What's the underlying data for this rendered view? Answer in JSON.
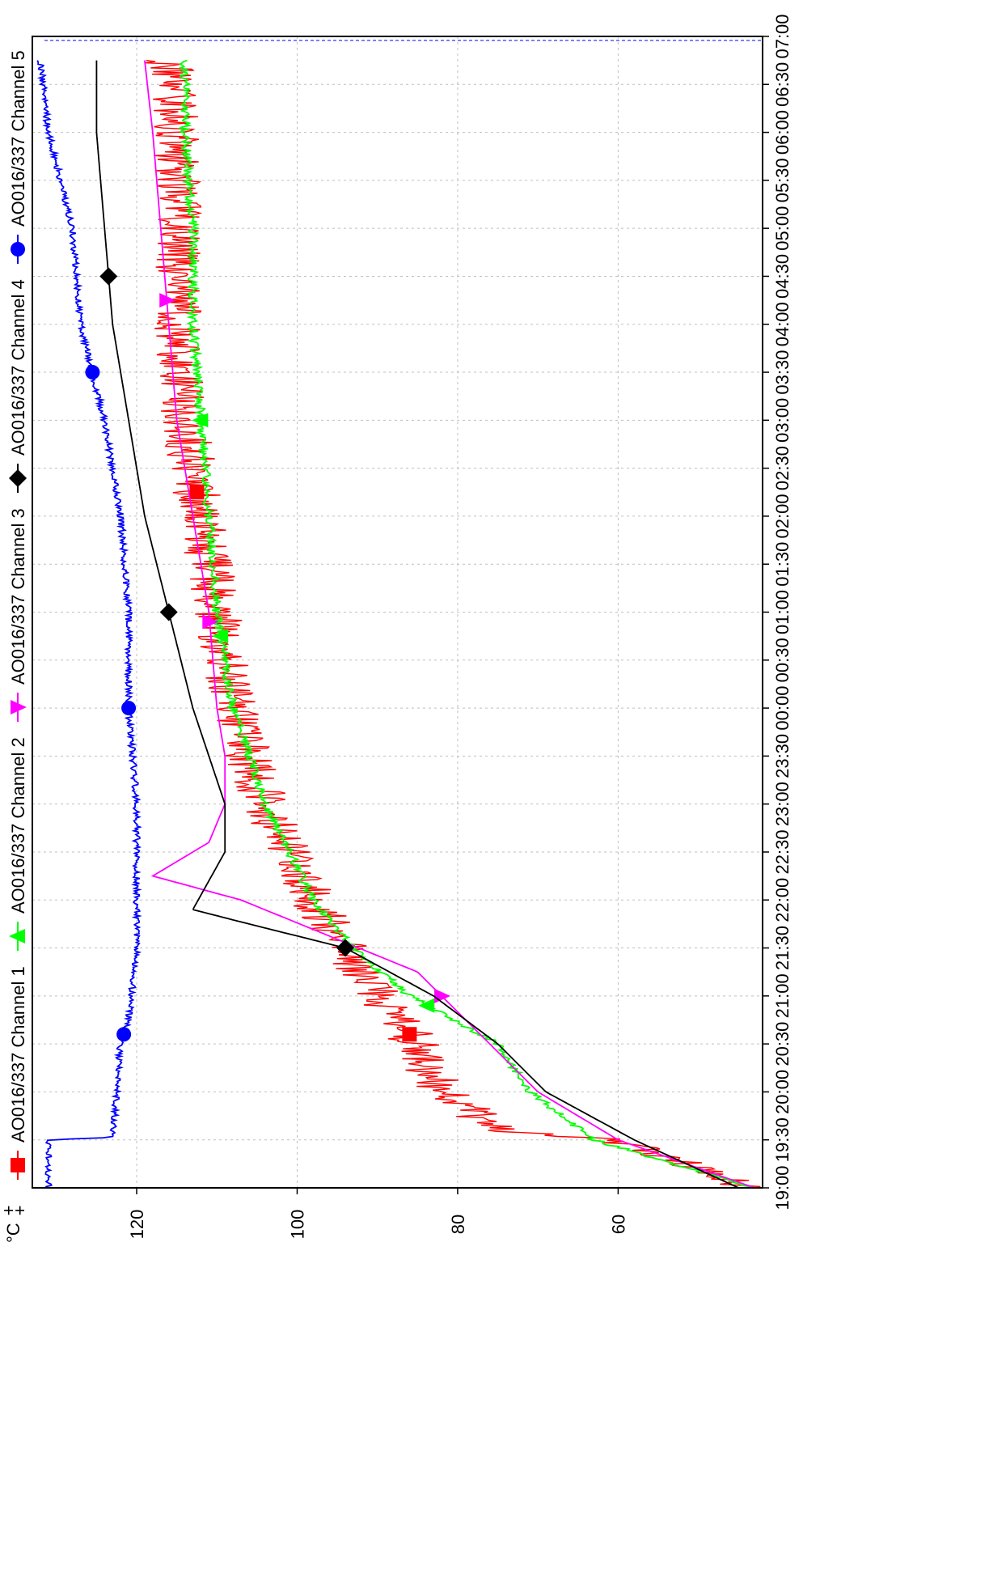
{
  "chart_data": {
    "type": "line",
    "orientation": "rotated-90-clockwise",
    "unit_label": "°C",
    "corner_marks": [
      "+",
      "+"
    ],
    "ylim": [
      42,
      133
    ],
    "yticks": [
      60,
      80,
      100,
      120
    ],
    "ytick_labels": [
      "60",
      "80",
      "100",
      "120"
    ],
    "x_categories": [
      "19:00",
      "19:30",
      "20:00",
      "20:30",
      "21:00",
      "21:30",
      "22:00",
      "22:30",
      "23:00",
      "23:30",
      "00:00",
      "00:30",
      "01:00",
      "01:30",
      "02:00",
      "02:30",
      "03:00",
      "03:30",
      "04:00",
      "04:30",
      "05:00",
      "05:30",
      "06:00",
      "06:30",
      "07:00"
    ],
    "xtick_labels": [
      "19:00",
      "19:30",
      "20:00",
      "20:30",
      "21:00",
      "21:30",
      "22:00",
      "22:30",
      "23:00",
      "23:30",
      "00:00",
      "00:30",
      "01:00",
      "01:30",
      "02:00",
      "02:30",
      "03:00",
      "03:30",
      "04:00",
      "04:30",
      "05:00",
      "05:30",
      "06:00",
      "06:30",
      "07:00"
    ],
    "grid": true,
    "legend_position": "top",
    "series": [
      {
        "name": "AO016/337 Channel 1",
        "color": "#ff0000",
        "marker": "square",
        "noise": 3,
        "points": [
          [
            0,
            43
          ],
          [
            1.0,
            60
          ],
          [
            1.2,
            75
          ],
          [
            2.0,
            82
          ],
          [
            3.5,
            87
          ],
          [
            4.0,
            90
          ],
          [
            5.0,
            94
          ],
          [
            6.0,
            98
          ],
          [
            8.0,
            104
          ],
          [
            10.0,
            108
          ],
          [
            12.0,
            110
          ],
          [
            14.0,
            112
          ],
          [
            16.0,
            114
          ],
          [
            18.0,
            115
          ],
          [
            20.0,
            115
          ],
          [
            22.0,
            115
          ],
          [
            23.5,
            116
          ]
        ]
      },
      {
        "name": "AO016/337 Channel 2",
        "color": "#00ff00",
        "marker": "triangle-up",
        "noise": 0.6,
        "points": [
          [
            0,
            43
          ],
          [
            1.0,
            63
          ],
          [
            2.0,
            71
          ],
          [
            3.0,
            75
          ],
          [
            4.0,
            86
          ],
          [
            5.0,
            93
          ],
          [
            6.0,
            98
          ],
          [
            8.0,
            104
          ],
          [
            10.0,
            108
          ],
          [
            12.0,
            110
          ],
          [
            14.0,
            111
          ],
          [
            16.0,
            112
          ],
          [
            18.0,
            113
          ],
          [
            20.0,
            113
          ],
          [
            22.0,
            114
          ],
          [
            23.5,
            114
          ]
        ]
      },
      {
        "name": "AO016/337 Channel 3",
        "color": "#ff00ff",
        "marker": "triangle-down",
        "noise": 0,
        "points": [
          [
            0,
            43
          ],
          [
            1.0,
            60
          ],
          [
            2.0,
            70
          ],
          [
            3.0,
            76
          ],
          [
            4.5,
            85
          ],
          [
            6.0,
            107
          ],
          [
            6.5,
            118
          ],
          [
            7.2,
            111
          ],
          [
            8.0,
            109
          ],
          [
            9.0,
            109
          ],
          [
            10.0,
            110
          ],
          [
            12.0,
            111
          ],
          [
            14.0,
            113
          ],
          [
            16.0,
            115
          ],
          [
            18.0,
            116
          ],
          [
            20.0,
            117
          ],
          [
            22.0,
            118
          ],
          [
            23.5,
            119
          ]
        ]
      },
      {
        "name": "AO016/337 Channel 4",
        "color": "#000000",
        "marker": "diamond",
        "noise": 0,
        "points": [
          [
            0,
            45
          ],
          [
            1.0,
            58
          ],
          [
            2.0,
            69
          ],
          [
            3.0,
            75
          ],
          [
            4.0,
            83
          ],
          [
            5.0,
            94
          ],
          [
            5.5,
            106
          ],
          [
            5.8,
            113
          ],
          [
            6.4,
            111
          ],
          [
            7.0,
            109
          ],
          [
            8.0,
            109
          ],
          [
            9.0,
            111
          ],
          [
            10.0,
            113
          ],
          [
            12.0,
            116
          ],
          [
            14.0,
            119
          ],
          [
            16.0,
            121
          ],
          [
            18.0,
            123
          ],
          [
            20.0,
            124
          ],
          [
            22.0,
            125
          ],
          [
            23.5,
            125
          ]
        ]
      },
      {
        "name": "AO016/337 Channel 5",
        "color": "#0000ff",
        "marker": "circle",
        "noise": 0.4,
        "points": [
          [
            0,
            131
          ],
          [
            0.5,
            131
          ],
          [
            1.0,
            131
          ],
          [
            1.05,
            123
          ],
          [
            3.0,
            122
          ],
          [
            3.5,
            121
          ],
          [
            5.0,
            120
          ],
          [
            6.5,
            120
          ],
          [
            7.5,
            120
          ],
          [
            8.0,
            120
          ],
          [
            10.0,
            121
          ],
          [
            12.0,
            121
          ],
          [
            14.0,
            122
          ],
          [
            16.0,
            124
          ],
          [
            18.0,
            127
          ],
          [
            20.0,
            128
          ],
          [
            22.0,
            131
          ],
          [
            23.5,
            132
          ]
        ]
      }
    ]
  }
}
